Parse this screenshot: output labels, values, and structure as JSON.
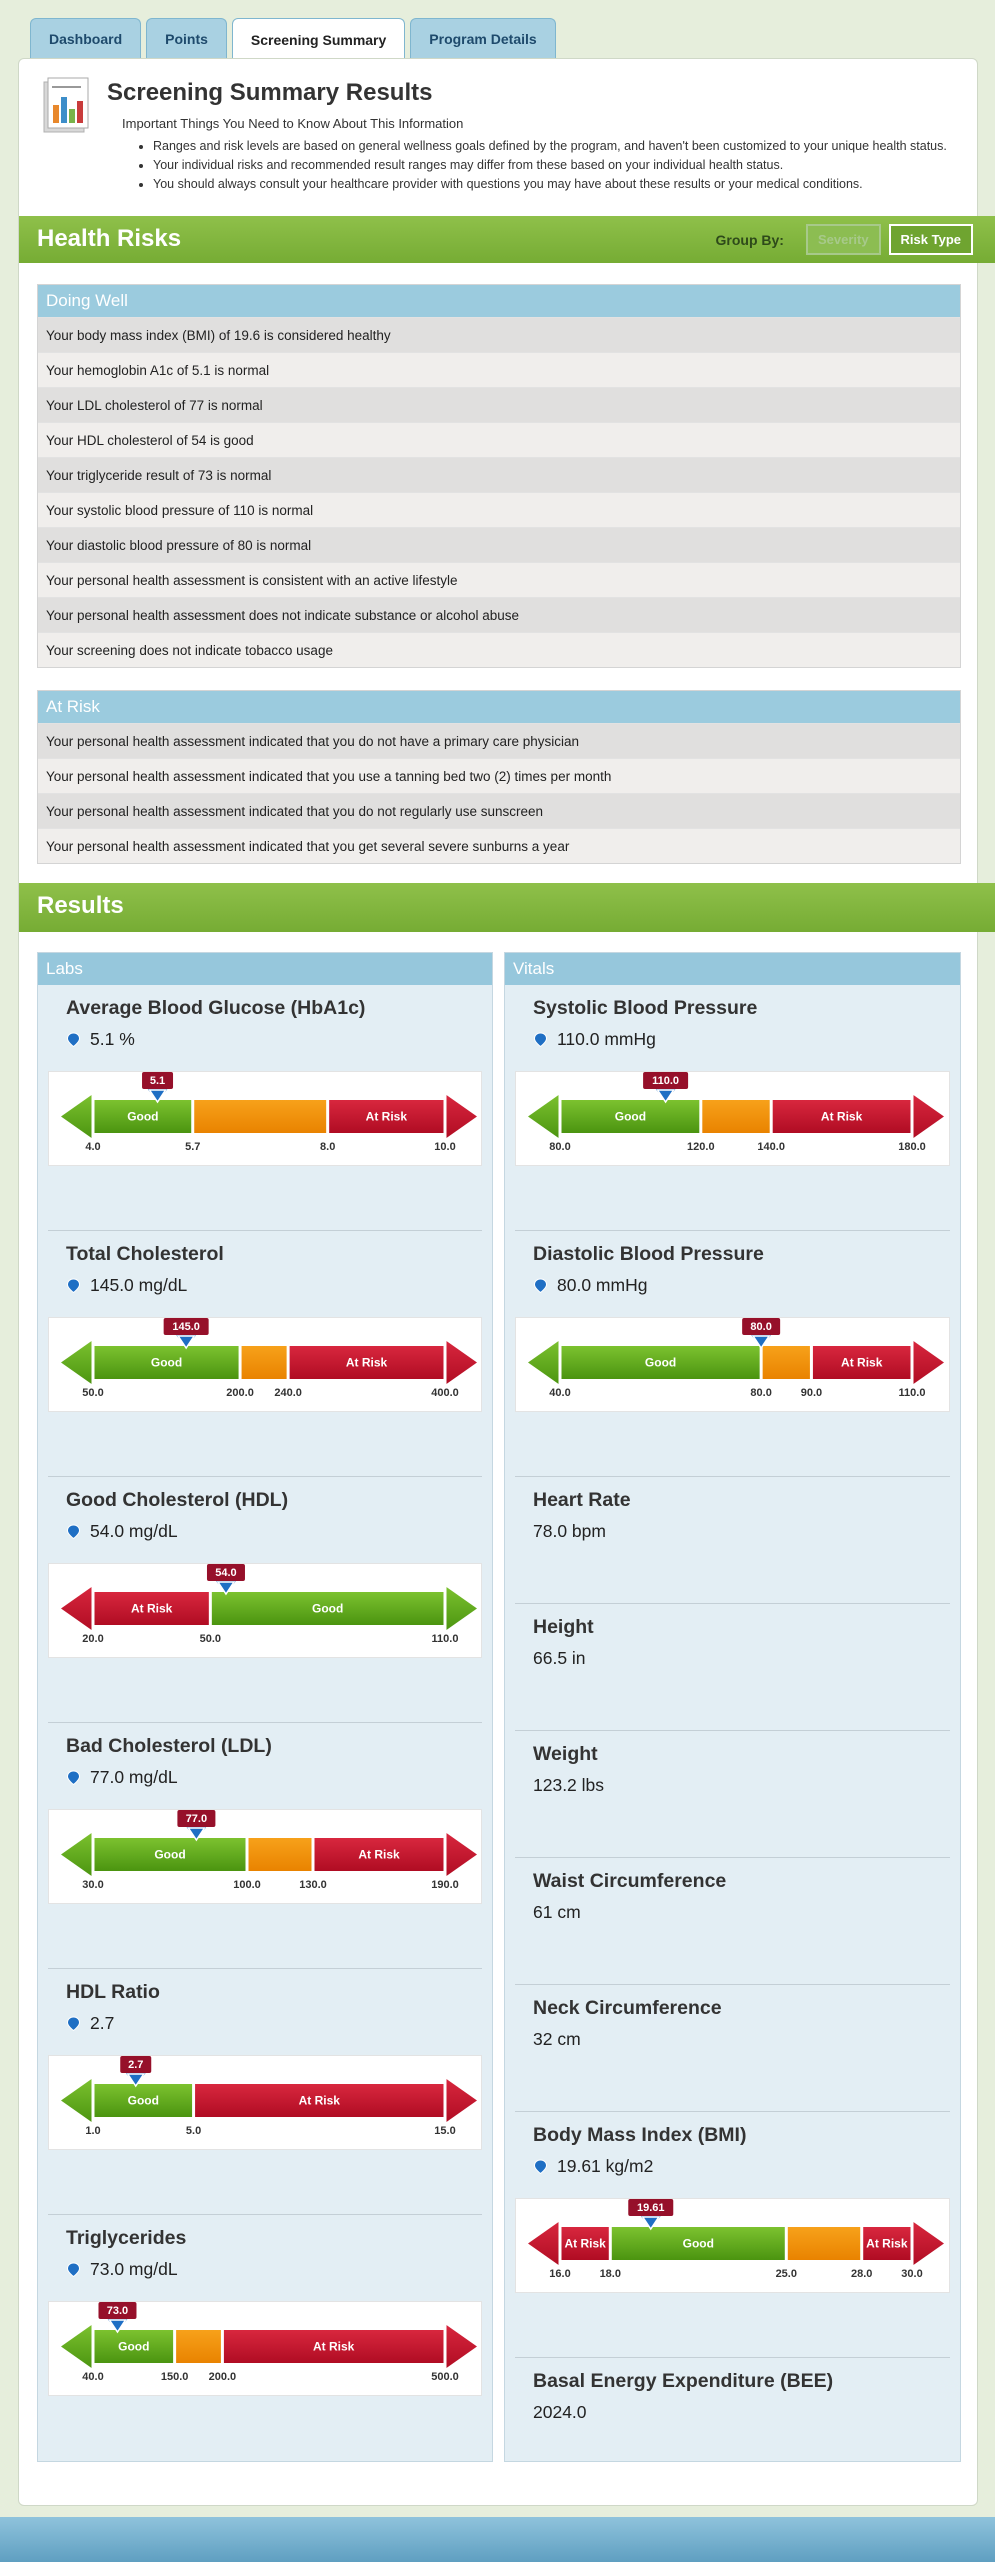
{
  "tabs": [
    {
      "label": "Dashboard",
      "active": false
    },
    {
      "label": "Points",
      "active": false
    },
    {
      "label": "Screening Summary",
      "active": true
    },
    {
      "label": "Program Details",
      "active": false
    }
  ],
  "header": {
    "icon": "report-chart-icon",
    "title": "Screening Summary Results",
    "subtitle": "Important Things You Need to Know About This Information",
    "bullets": [
      "Ranges and risk levels are based on general wellness goals defined by the program, and haven't been customized to your unique health status.",
      "Your individual risks and recommended result ranges may differ from these based on your individual health status.",
      "You should always consult your healthcare provider with questions you may have about these results or your medical conditions."
    ]
  },
  "health_risks": {
    "title": "Health Risks",
    "group_by_label": "Group By:",
    "buttons": [
      {
        "label": "Severity",
        "active": false
      },
      {
        "label": "Risk Type",
        "active": true
      }
    ],
    "groups": [
      {
        "title": "Doing Well",
        "items": [
          "Your body mass index (BMI) of 19.6 is considered healthy",
          "Your hemoglobin A1c of 5.1 is normal",
          "Your LDL cholesterol of 77 is normal",
          "Your HDL cholesterol of 54 is good",
          "Your triglyceride result of 73 is normal",
          "Your systolic blood pressure of 110 is normal",
          "Your diastolic blood pressure of 80 is normal",
          "Your personal health assessment is consistent with an active lifestyle",
          "Your personal health assessment does not indicate substance or alcohol abuse",
          "Your screening does not indicate tobacco usage"
        ]
      },
      {
        "title": "At Risk",
        "items": [
          "Your personal health assessment indicated that you do not have a primary care physician",
          "Your personal health assessment indicated that you use a tanning bed two (2) times per month",
          "Your personal health assessment indicated that you do not regularly use sunscreen",
          "Your personal health assessment indicated that you get several severe sunburns a year"
        ]
      }
    ]
  },
  "results": {
    "title": "Results",
    "colors": {
      "good": "#5aa114",
      "moderate": "#f08c00",
      "risk": "#c2102a",
      "marker": "#96102a"
    },
    "labs": {
      "title": "Labs",
      "items": [
        {
          "name": "Average Blood Glucose (HbA1c)",
          "value": "5.1 %",
          "marker": 5.1,
          "marker_label": "5.1",
          "ticks": [
            4.0,
            5.7,
            8.0,
            10.0
          ],
          "tick_labels": [
            "4.0",
            "5.7",
            "8.0",
            "10.0"
          ],
          "segments": [
            {
              "from": 4.0,
              "to": 5.7,
              "zone": "good",
              "label": "Good"
            },
            {
              "from": 5.7,
              "to": 8.0,
              "zone": "moderate",
              "label": ""
            },
            {
              "from": 8.0,
              "to": 10.0,
              "zone": "risk",
              "label": "At Risk"
            }
          ]
        },
        {
          "name": "Total Cholesterol",
          "value": "145.0 mg/dL",
          "marker": 145.0,
          "marker_label": "145.0",
          "ticks": [
            50,
            200,
            240,
            400
          ],
          "tick_labels": [
            "50.0",
            "200.0",
            "240.0",
            "400.0"
          ],
          "segments": [
            {
              "from": 50,
              "to": 200,
              "zone": "good",
              "label": "Good"
            },
            {
              "from": 200,
              "to": 240,
              "zone": "moderate",
              "label": ""
            },
            {
              "from": 240,
              "to": 400,
              "zone": "risk",
              "label": "At Risk"
            }
          ]
        },
        {
          "name": "Good Cholesterol (HDL)",
          "value": "54.0 mg/dL",
          "marker": 54.0,
          "marker_label": "54.0",
          "ticks": [
            20,
            50,
            110
          ],
          "tick_labels": [
            "20.0",
            "50.0",
            "110.0"
          ],
          "segments": [
            {
              "from": 20,
              "to": 50,
              "zone": "risk",
              "label": "At Risk"
            },
            {
              "from": 50,
              "to": 110,
              "zone": "good",
              "label": "Good"
            }
          ],
          "left_arrow": "risk",
          "right_arrow": "good"
        },
        {
          "name": "Bad Cholesterol (LDL)",
          "value": "77.0 mg/dL",
          "marker": 77.0,
          "marker_label": "77.0",
          "ticks": [
            30,
            100,
            130,
            190
          ],
          "tick_labels": [
            "30.0",
            "100.0",
            "130.0",
            "190.0"
          ],
          "segments": [
            {
              "from": 30,
              "to": 100,
              "zone": "good",
              "label": "Good"
            },
            {
              "from": 100,
              "to": 130,
              "zone": "moderate",
              "label": ""
            },
            {
              "from": 130,
              "to": 190,
              "zone": "risk",
              "label": "At Risk"
            }
          ]
        },
        {
          "name": "HDL Ratio",
          "value": "2.7",
          "marker": 2.7,
          "marker_label": "2.7",
          "ticks": [
            1,
            5,
            15
          ],
          "tick_labels": [
            "1.0",
            "5.0",
            "15.0"
          ],
          "segments": [
            {
              "from": 1,
              "to": 5,
              "zone": "good",
              "label": "Good"
            },
            {
              "from": 5,
              "to": 15,
              "zone": "risk",
              "label": "At Risk"
            }
          ]
        },
        {
          "name": "Triglycerides",
          "value": "73.0 mg/dL",
          "marker": 73.0,
          "marker_label": "73.0",
          "ticks": [
            40,
            150,
            200,
            500
          ],
          "tick_labels": [
            "40.0",
            "150.0",
            "200.0",
            "500.0"
          ],
          "segments": [
            {
              "from": 40,
              "to": 150,
              "zone": "good",
              "label": "Good"
            },
            {
              "from": 150,
              "to": 200,
              "zone": "moderate",
              "label": ""
            },
            {
              "from": 200,
              "to": 500,
              "zone": "risk",
              "label": "At Risk"
            }
          ]
        }
      ]
    },
    "vitals": {
      "title": "Vitals",
      "items": [
        {
          "name": "Systolic Blood Pressure",
          "value": "110.0 mmHg",
          "marker": 110.0,
          "marker_label": "110.0",
          "ticks": [
            80,
            120,
            140,
            180
          ],
          "tick_labels": [
            "80.0",
            "120.0",
            "140.0",
            "180.0"
          ],
          "segments": [
            {
              "from": 80,
              "to": 120,
              "zone": "good",
              "label": "Good"
            },
            {
              "from": 120,
              "to": 140,
              "zone": "moderate",
              "label": ""
            },
            {
              "from": 140,
              "to": 180,
              "zone": "risk",
              "label": "At Risk"
            }
          ]
        },
        {
          "name": "Diastolic Blood Pressure",
          "value": "80.0 mmHg",
          "marker": 80.0,
          "marker_label": "80.0",
          "ticks": [
            40,
            80,
            90,
            110
          ],
          "tick_labels": [
            "40.0",
            "80.0",
            "90.0",
            "110.0"
          ],
          "segments": [
            {
              "from": 40,
              "to": 80,
              "zone": "good",
              "label": "Good"
            },
            {
              "from": 80,
              "to": 90,
              "zone": "moderate",
              "label": ""
            },
            {
              "from": 90,
              "to": 110,
              "zone": "risk",
              "label": "At Risk"
            }
          ]
        },
        {
          "name": "Heart Rate",
          "value": "78.0 bpm"
        },
        {
          "name": "Height",
          "value": "66.5 in"
        },
        {
          "name": "Weight",
          "value": "123.2 lbs"
        },
        {
          "name": "Waist Circumference",
          "value": "61 cm"
        },
        {
          "name": "Neck Circumference",
          "value": "32 cm"
        },
        {
          "name": "Body Mass Index (BMI)",
          "value": "19.61 kg/m2",
          "marker": 19.61,
          "marker_label": "19.61",
          "ticks": [
            16,
            18,
            25,
            28,
            30
          ],
          "tick_labels": [
            "16.0",
            "18.0",
            "25.0",
            "28.0",
            "30.0"
          ],
          "segments": [
            {
              "from": 16,
              "to": 18,
              "zone": "risk",
              "label": "At Risk"
            },
            {
              "from": 18,
              "to": 25,
              "zone": "good",
              "label": "Good"
            },
            {
              "from": 25,
              "to": 28,
              "zone": "moderate",
              "label": ""
            },
            {
              "from": 28,
              "to": 30,
              "zone": "risk",
              "label": "At Risk"
            }
          ],
          "left_arrow": "risk",
          "right_arrow": "risk"
        },
        {
          "name": "Basal Energy Expenditure (BEE)",
          "value": "2024.0"
        }
      ]
    }
  }
}
